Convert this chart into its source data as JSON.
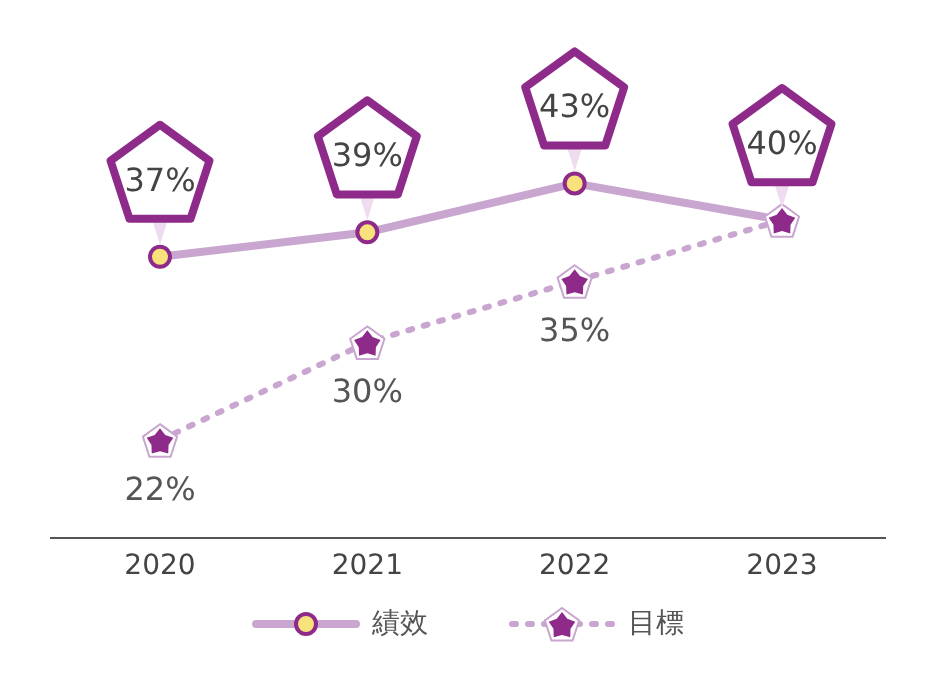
{
  "chart_data": {
    "type": "line",
    "categories": [
      "2020",
      "2021",
      "2022",
      "2023"
    ],
    "series": [
      {
        "name": "績效",
        "color": "#c9a6cf",
        "values": [
          37,
          39,
          43,
          40
        ],
        "marker": "circle",
        "line_style": "solid",
        "value_labels": [
          "37%",
          "39%",
          "43%",
          "40%"
        ]
      },
      {
        "name": "目標",
        "color": "#8e2a8a",
        "values": [
          22,
          30,
          35,
          40
        ],
        "marker": "star",
        "line_style": "dotted",
        "value_labels": [
          "22%",
          "30%",
          "35%",
          null
        ]
      }
    ],
    "legend": "bottom",
    "grid": false
  }
}
